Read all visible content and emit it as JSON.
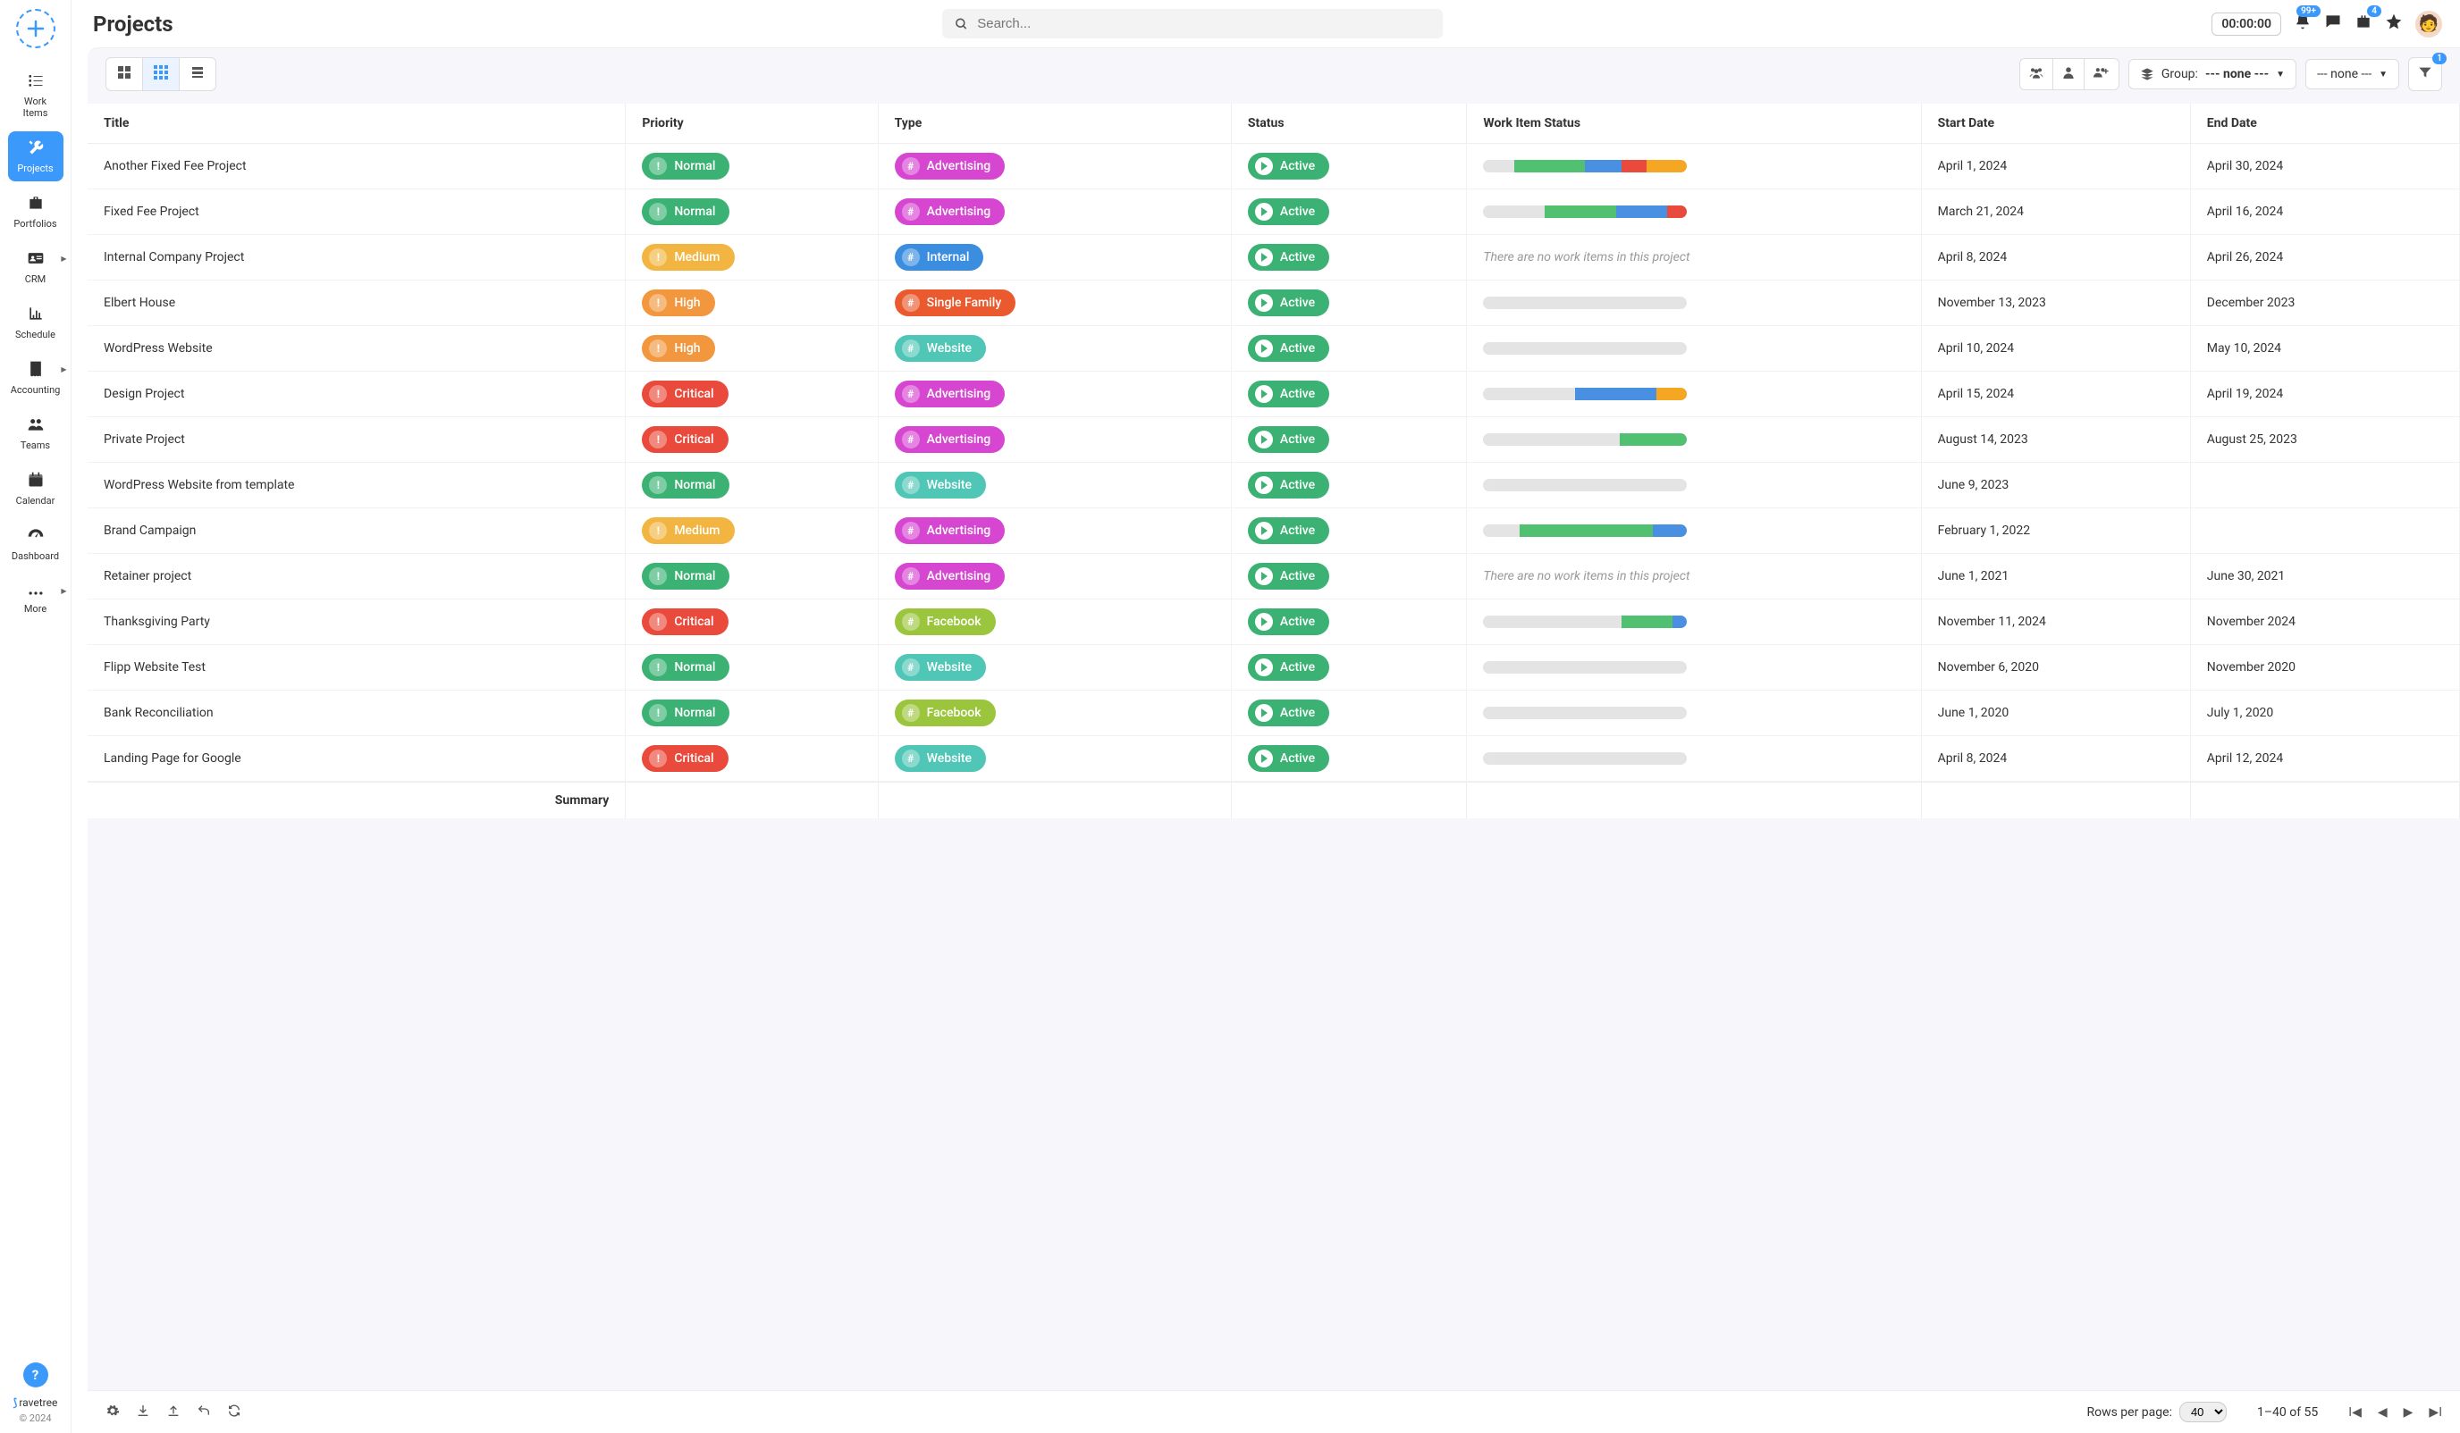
{
  "page": {
    "title": "Projects",
    "brand": "ravetree",
    "copyright": "© 2024"
  },
  "search": {
    "placeholder": "Search..."
  },
  "topbar": {
    "timer": "00:00:00",
    "bell_badge": "99+",
    "briefcase_badge": "4"
  },
  "sidebar": {
    "items": [
      {
        "icon": "list-check",
        "label": "Work Items",
        "has_chevron": false
      },
      {
        "icon": "wrench",
        "label": "Projects",
        "has_chevron": false,
        "active": true
      },
      {
        "icon": "briefcase",
        "label": "Portfolios",
        "has_chevron": false
      },
      {
        "icon": "id-card",
        "label": "CRM",
        "has_chevron": true
      },
      {
        "icon": "chart",
        "label": "Schedule",
        "has_chevron": false
      },
      {
        "icon": "receipt",
        "label": "Accounting",
        "has_chevron": true
      },
      {
        "icon": "users",
        "label": "Teams",
        "has_chevron": false
      },
      {
        "icon": "calendar",
        "label": "Calendar",
        "has_chevron": false
      },
      {
        "icon": "gauge",
        "label": "Dashboard",
        "has_chevron": false
      },
      {
        "icon": "dots",
        "label": "More",
        "has_chevron": true
      }
    ]
  },
  "toolbar": {
    "group_label": "Group:",
    "group_value": "--- none ---",
    "filter_value": "--- none ---",
    "filter_count": "1"
  },
  "colors": {
    "priority": {
      "Normal": "#3bb273",
      "Medium": "#f2b541",
      "High": "#f2973d",
      "Critical": "#ea4a3b"
    },
    "type": {
      "Advertising": "#d646d1",
      "Internal": "#3b8de0",
      "Single Family": "#ea5a2e",
      "Website": "#4fc6b6",
      "Facebook": "#9bc53d"
    },
    "status": {
      "Active": "#3bb273"
    },
    "progress": {
      "grey": "#e4e4e4",
      "green": "#51c071",
      "blue": "#4a90e2",
      "red": "#ea4a3b",
      "orange": "#f5a623"
    }
  },
  "table": {
    "columns": [
      "Title",
      "Priority",
      "Type",
      "Status",
      "Work Item Status",
      "Start Date",
      "End Date"
    ],
    "summary_label": "Summary",
    "no_items_text": "There are no work items in this project",
    "rows": [
      {
        "title": "Another Fixed Fee Project",
        "priority": "Normal",
        "type": "Advertising",
        "status": "Active",
        "progress": [
          [
            "grey",
            15
          ],
          [
            "green",
            35
          ],
          [
            "blue",
            18
          ],
          [
            "red",
            12
          ],
          [
            "orange",
            20
          ]
        ],
        "start": "April 1, 2024",
        "end": "April 30, 2024"
      },
      {
        "title": "Fixed Fee Project",
        "priority": "Normal",
        "type": "Advertising",
        "status": "Active",
        "progress": [
          [
            "grey",
            30
          ],
          [
            "green",
            35
          ],
          [
            "blue",
            25
          ],
          [
            "red",
            10
          ]
        ],
        "start": "March 21, 2024",
        "end": "April 16, 2024"
      },
      {
        "title": "Internal Company Project",
        "priority": "Medium",
        "type": "Internal",
        "status": "Active",
        "progress": "none",
        "start": "April 8, 2024",
        "end": "April 26, 2024"
      },
      {
        "title": "Elbert House",
        "priority": "High",
        "type": "Single Family",
        "status": "Active",
        "progress": [
          [
            "grey",
            100
          ]
        ],
        "start": "November 13, 2023",
        "end": "December 2023"
      },
      {
        "title": "WordPress Website",
        "priority": "High",
        "type": "Website",
        "status": "Active",
        "progress": [
          [
            "grey",
            100
          ]
        ],
        "start": "April 10, 2024",
        "end": "May 10, 2024"
      },
      {
        "title": "Design Project",
        "priority": "Critical",
        "type": "Advertising",
        "status": "Active",
        "progress": [
          [
            "grey",
            45
          ],
          [
            "blue",
            40
          ],
          [
            "orange",
            15
          ]
        ],
        "start": "April 15, 2024",
        "end": "April 19, 2024"
      },
      {
        "title": "Private Project",
        "priority": "Critical",
        "type": "Advertising",
        "status": "Active",
        "progress": [
          [
            "grey",
            67
          ],
          [
            "green",
            33
          ]
        ],
        "start": "August 14, 2023",
        "end": "August 25, 2023"
      },
      {
        "title": "WordPress Website from template",
        "priority": "Normal",
        "type": "Website",
        "status": "Active",
        "progress": [
          [
            "grey",
            100
          ]
        ],
        "start": "June 9, 2023",
        "end": ""
      },
      {
        "title": "Brand Campaign",
        "priority": "Medium",
        "type": "Advertising",
        "status": "Active",
        "progress": [
          [
            "grey",
            18
          ],
          [
            "green",
            65
          ],
          [
            "blue",
            17
          ]
        ],
        "start": "February 1, 2022",
        "end": ""
      },
      {
        "title": "Retainer project",
        "priority": "Normal",
        "type": "Advertising",
        "status": "Active",
        "progress": "none",
        "start": "June 1, 2021",
        "end": "June 30, 2021"
      },
      {
        "title": "Thanksgiving Party",
        "priority": "Critical",
        "type": "Facebook",
        "status": "Active",
        "progress": [
          [
            "grey",
            68
          ],
          [
            "green",
            25
          ],
          [
            "blue",
            7
          ]
        ],
        "start": "November 11, 2024",
        "end": "November 2024"
      },
      {
        "title": "Flipp Website Test",
        "priority": "Normal",
        "type": "Website",
        "status": "Active",
        "progress": [
          [
            "grey",
            100
          ]
        ],
        "start": "November 6, 2020",
        "end": "November 2020"
      },
      {
        "title": "Bank Reconciliation",
        "priority": "Normal",
        "type": "Facebook",
        "status": "Active",
        "progress": [
          [
            "grey",
            100
          ]
        ],
        "start": "June 1, 2020",
        "end": "July 1, 2020"
      },
      {
        "title": "Landing Page for Google",
        "priority": "Critical",
        "type": "Website",
        "status": "Active",
        "progress": [
          [
            "grey",
            100
          ]
        ],
        "start": "April 8, 2024",
        "end": "April 12, 2024"
      }
    ]
  },
  "footer": {
    "rows_per_page_label": "Rows per page:",
    "rows_per_page_value": "40",
    "page_info": "1–40 of 55"
  }
}
